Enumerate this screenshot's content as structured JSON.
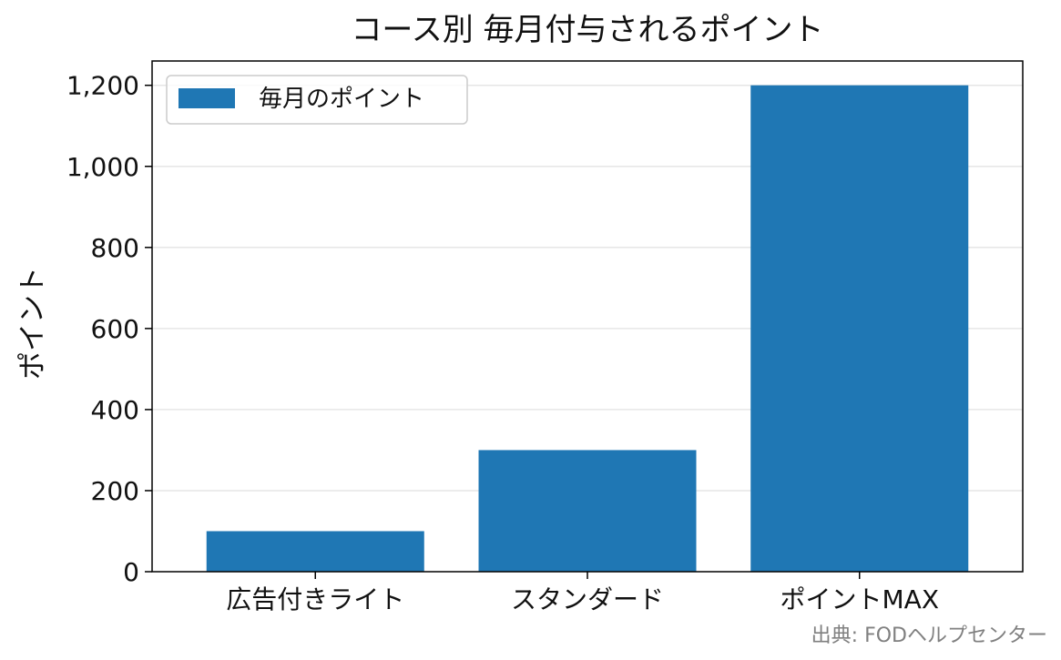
{
  "chart_data": {
    "type": "bar",
    "title": "コース別 毎月付与されるポイント",
    "categories": [
      "広告付きライト",
      "スタンダード",
      "ポイントMAX"
    ],
    "series": [
      {
        "name": "毎月のポイント",
        "values": [
          100,
          300,
          1200
        ]
      }
    ],
    "ylabel": "ポイント",
    "xlabel": "",
    "ylim": [
      0,
      1260
    ],
    "yticks": [
      0,
      200,
      400,
      600,
      800,
      1000,
      1200
    ],
    "ytick_labels": [
      "0",
      "200",
      "400",
      "600",
      "800",
      "1,000",
      "1,200"
    ],
    "grid": "horizontal",
    "legend_position": "top-left",
    "bar_color": "#1f77b4",
    "source_note": "出典: FODヘルプセンター"
  }
}
